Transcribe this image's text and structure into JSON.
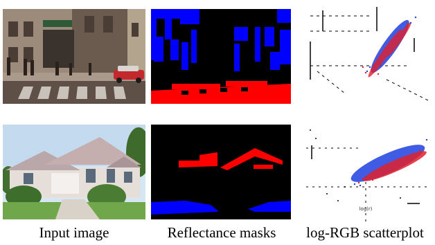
{
  "captions": {
    "input": "Input image",
    "masks": "Reflectance masks",
    "scatter": "log-RGB scatterplot"
  },
  "scatter_axis_label": "log(r)",
  "colors": {
    "mask_background": "#000000",
    "mask_blue": "#0000ff",
    "mask_red": "#ff0000",
    "scatter_blue": "#1f3fe0",
    "scatter_red": "#e0202a"
  },
  "rows": [
    {
      "scene": "street",
      "mask_regions": [
        "facade (blue)",
        "crosswalk (red)"
      ]
    },
    {
      "scene": "house",
      "mask_regions": [
        "roof (red)",
        "lawn (blue)"
      ]
    }
  ]
}
